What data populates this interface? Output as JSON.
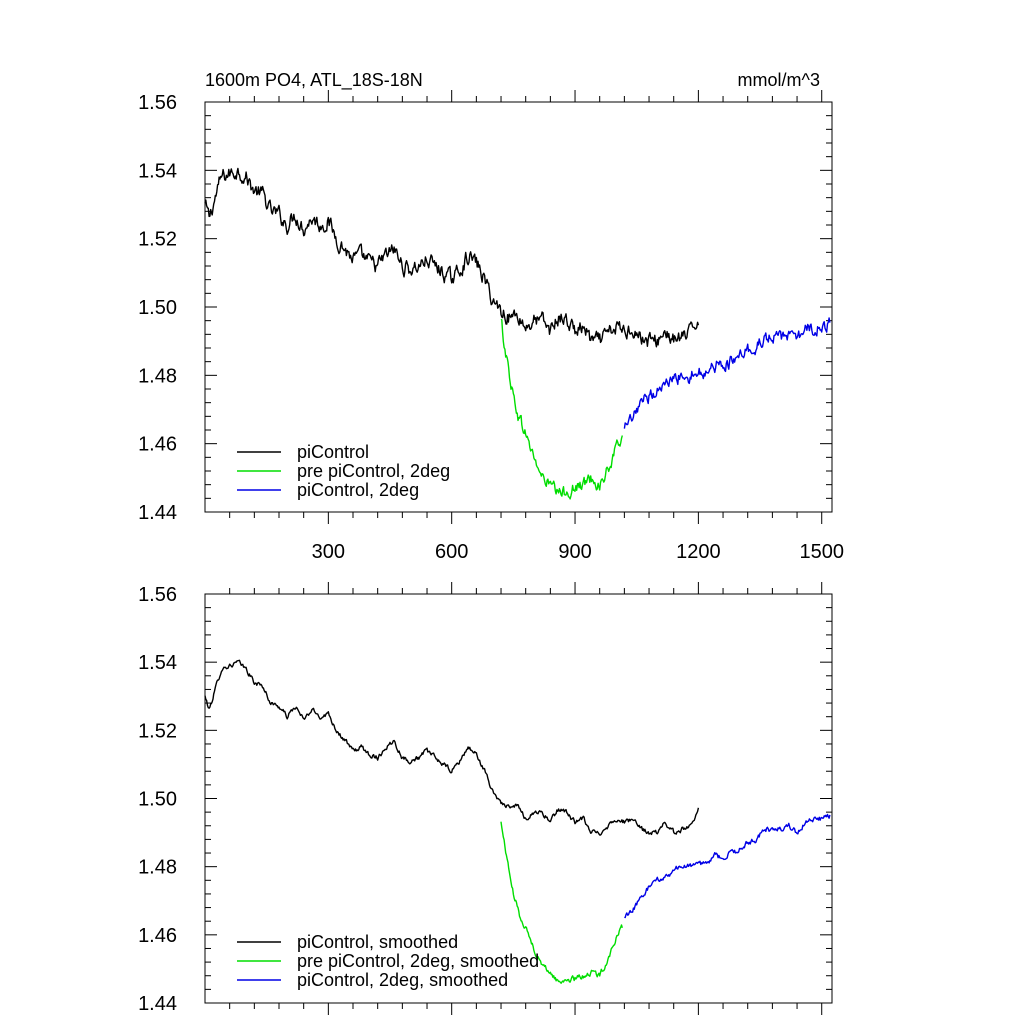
{
  "chart_data": [
    {
      "type": "line",
      "title": "1600m PO4, ATL_18S-18N",
      "units": "mmol/m^3",
      "xlim": [
        0,
        1525
      ],
      "ylim": [
        1.44,
        1.56
      ],
      "x_ticks": [
        300,
        600,
        900,
        1200,
        1500
      ],
      "y_ticks": [
        1.44,
        1.46,
        1.48,
        1.5,
        1.52,
        1.54,
        1.56
      ],
      "y_tick_labels": [
        "1.44",
        "1.46",
        "1.48",
        "1.50",
        "1.52",
        "1.54",
        "1.56"
      ],
      "show_x_tick_labels": true,
      "grid": false,
      "legend_position": "bottom-left",
      "series": [
        {
          "name": "piControl",
          "color": "#000000",
          "noise": 0.0019,
          "x": [
            0,
            10,
            25,
            40,
            60,
            80,
            100,
            120,
            140,
            160,
            180,
            200,
            220,
            240,
            260,
            280,
            300,
            320,
            340,
            360,
            380,
            400,
            420,
            440,
            460,
            480,
            500,
            520,
            540,
            560,
            580,
            600,
            620,
            640,
            660,
            680,
            700,
            720,
            740,
            760,
            780,
            800,
            820,
            840,
            860,
            880,
            900,
            920,
            940,
            960,
            980,
            1000,
            1020,
            1040,
            1060,
            1080,
            1100,
            1120,
            1140,
            1160,
            1180,
            1200
          ],
          "y": [
            1.53,
            1.526,
            1.532,
            1.538,
            1.539,
            1.54,
            1.538,
            1.534,
            1.533,
            1.528,
            1.527,
            1.524,
            1.527,
            1.523,
            1.526,
            1.524,
            1.525,
            1.52,
            1.517,
            1.514,
            1.515,
            1.513,
            1.512,
            1.515,
            1.517,
            1.512,
            1.511,
            1.512,
            1.514,
            1.512,
            1.51,
            1.508,
            1.511,
            1.515,
            1.513,
            1.508,
            1.502,
            1.499,
            1.497,
            1.498,
            1.494,
            1.496,
            1.496,
            1.493,
            1.497,
            1.496,
            1.493,
            1.494,
            1.49,
            1.49,
            1.492,
            1.494,
            1.493,
            1.494,
            1.491,
            1.49,
            1.49,
            1.493,
            1.49,
            1.491,
            1.492,
            1.497
          ]
        },
        {
          "name": "pre piControl, 2deg",
          "color": "#00dd00",
          "noise": 0.0016,
          "x": [
            720,
            735,
            750,
            765,
            780,
            800,
            820,
            840,
            860,
            880,
            900,
            920,
            940,
            960,
            980,
            1000,
            1015
          ],
          "y": [
            1.496,
            1.484,
            1.474,
            1.467,
            1.463,
            1.456,
            1.45,
            1.448,
            1.445,
            1.446,
            1.447,
            1.448,
            1.45,
            1.448,
            1.452,
            1.458,
            1.463
          ]
        },
        {
          "name": "piControl, 2deg",
          "color": "#0000e6",
          "noise": 0.0016,
          "x": [
            1020,
            1040,
            1060,
            1080,
            1100,
            1120,
            1140,
            1160,
            1180,
            1200,
            1220,
            1240,
            1260,
            1280,
            1300,
            1320,
            1340,
            1360,
            1380,
            1400,
            1420,
            1440,
            1460,
            1480,
            1500,
            1520
          ],
          "y": [
            1.464,
            1.467,
            1.471,
            1.474,
            1.476,
            1.477,
            1.479,
            1.48,
            1.48,
            1.481,
            1.481,
            1.483,
            1.483,
            1.484,
            1.485,
            1.487,
            1.488,
            1.491,
            1.491,
            1.491,
            1.492,
            1.49,
            1.493,
            1.494,
            1.494,
            1.495
          ]
        }
      ]
    },
    {
      "type": "line",
      "title": "",
      "units": "",
      "xlim": [
        0,
        1525
      ],
      "ylim": [
        1.44,
        1.56
      ],
      "x_ticks": [
        300,
        600,
        900,
        1200,
        1500
      ],
      "y_ticks": [
        1.44,
        1.46,
        1.48,
        1.5,
        1.52,
        1.54,
        1.56
      ],
      "y_tick_labels": [
        "1.44",
        "1.46",
        "1.48",
        "1.50",
        "1.52",
        "1.54",
        "1.56"
      ],
      "show_x_tick_labels": false,
      "grid": false,
      "legend_position": "bottom-left",
      "series": [
        {
          "name": "piControl, smoothed",
          "color": "#000000",
          "noise": 0.0006,
          "x": [
            0,
            10,
            25,
            40,
            60,
            80,
            100,
            120,
            140,
            160,
            180,
            200,
            220,
            240,
            260,
            280,
            300,
            320,
            340,
            360,
            380,
            400,
            420,
            440,
            460,
            480,
            500,
            520,
            540,
            560,
            580,
            600,
            620,
            640,
            660,
            680,
            700,
            720,
            740,
            760,
            780,
            800,
            820,
            840,
            860,
            880,
            900,
            920,
            940,
            960,
            980,
            1000,
            1020,
            1040,
            1060,
            1080,
            1100,
            1120,
            1140,
            1160,
            1180,
            1200
          ],
          "y": [
            1.53,
            1.526,
            1.532,
            1.538,
            1.539,
            1.54,
            1.538,
            1.534,
            1.533,
            1.528,
            1.527,
            1.524,
            1.527,
            1.523,
            1.526,
            1.524,
            1.525,
            1.52,
            1.517,
            1.514,
            1.515,
            1.513,
            1.512,
            1.515,
            1.517,
            1.512,
            1.511,
            1.512,
            1.514,
            1.512,
            1.51,
            1.508,
            1.511,
            1.515,
            1.513,
            1.508,
            1.502,
            1.499,
            1.497,
            1.498,
            1.494,
            1.496,
            1.496,
            1.493,
            1.497,
            1.496,
            1.493,
            1.494,
            1.49,
            1.49,
            1.492,
            1.494,
            1.493,
            1.494,
            1.491,
            1.49,
            1.49,
            1.493,
            1.49,
            1.491,
            1.492,
            1.497
          ]
        },
        {
          "name": "pre piControl, 2deg, smoothed",
          "color": "#00dd00",
          "noise": 0.0007,
          "x": [
            720,
            735,
            750,
            765,
            780,
            800,
            820,
            840,
            860,
            880,
            900,
            920,
            940,
            960,
            980,
            1000,
            1015
          ],
          "y": [
            1.493,
            1.482,
            1.472,
            1.466,
            1.462,
            1.456,
            1.451,
            1.449,
            1.446,
            1.447,
            1.447,
            1.448,
            1.449,
            1.448,
            1.453,
            1.459,
            1.462
          ]
        },
        {
          "name": "piControl, 2deg, smoothed",
          "color": "#0000e6",
          "noise": 0.0007,
          "x": [
            1020,
            1040,
            1060,
            1080,
            1100,
            1120,
            1140,
            1160,
            1180,
            1200,
            1220,
            1240,
            1260,
            1280,
            1300,
            1320,
            1340,
            1360,
            1380,
            1400,
            1420,
            1440,
            1460,
            1480,
            1500,
            1520
          ],
          "y": [
            1.465,
            1.467,
            1.471,
            1.474,
            1.476,
            1.477,
            1.479,
            1.48,
            1.48,
            1.481,
            1.481,
            1.483,
            1.483,
            1.484,
            1.485,
            1.487,
            1.488,
            1.491,
            1.491,
            1.491,
            1.492,
            1.49,
            1.493,
            1.494,
            1.494,
            1.495
          ]
        }
      ]
    }
  ]
}
